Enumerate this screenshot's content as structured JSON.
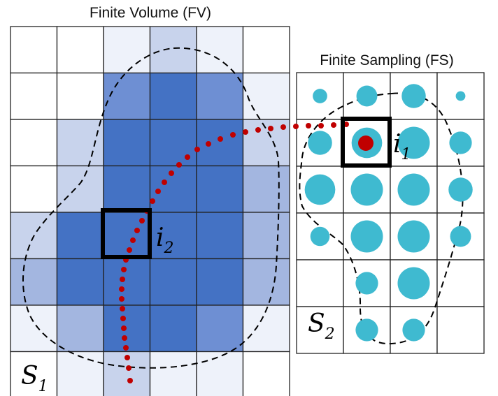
{
  "fv_panel": {
    "title": "Finite Volume (FV)",
    "rows": 8,
    "cols": 6,
    "shades": [
      [
        0,
        0,
        1,
        2,
        1,
        0
      ],
      [
        0,
        0,
        4,
        5,
        4,
        1
      ],
      [
        0,
        2,
        5,
        5,
        5,
        2
      ],
      [
        0,
        2,
        5,
        5,
        5,
        3
      ],
      [
        2,
        5,
        5,
        5,
        5,
        3
      ],
      [
        3,
        5,
        5,
        5,
        5,
        3
      ],
      [
        1,
        3,
        5,
        5,
        4,
        1
      ],
      [
        0,
        1,
        2,
        1,
        1,
        0
      ]
    ],
    "shade_colors": [
      "#ffffff",
      "#eef2fa",
      "#c8d3ec",
      "#a3b6e0",
      "#6e8fd3",
      "#4472c4"
    ],
    "highlight_label": {
      "base": "i",
      "subscript": "2"
    },
    "region_label": {
      "base": "S",
      "subscript": "1"
    }
  },
  "fs_panel": {
    "title": "Finite Sampling (FS)",
    "rows": 6,
    "cols": 4,
    "sample_weights": [
      [
        0.45,
        0.65,
        0.75,
        0.3
      ],
      [
        0.75,
        0.95,
        1.0,
        0.7
      ],
      [
        0.95,
        1.0,
        1.0,
        0.75
      ],
      [
        0.6,
        1.0,
        1.0,
        0.65
      ],
      [
        0,
        0.7,
        1.0,
        0
      ],
      [
        0,
        0.7,
        0.7,
        0
      ]
    ],
    "sample_color": "#3fbad0",
    "highlight_label": {
      "base": "i",
      "subscript": "1"
    },
    "region_label": {
      "base": "S",
      "subscript": "2"
    }
  },
  "colors": {
    "grid_line": "#222222",
    "ray_dot": "#c00000",
    "highlight_box": "#000000",
    "region_outline": "#000000"
  }
}
